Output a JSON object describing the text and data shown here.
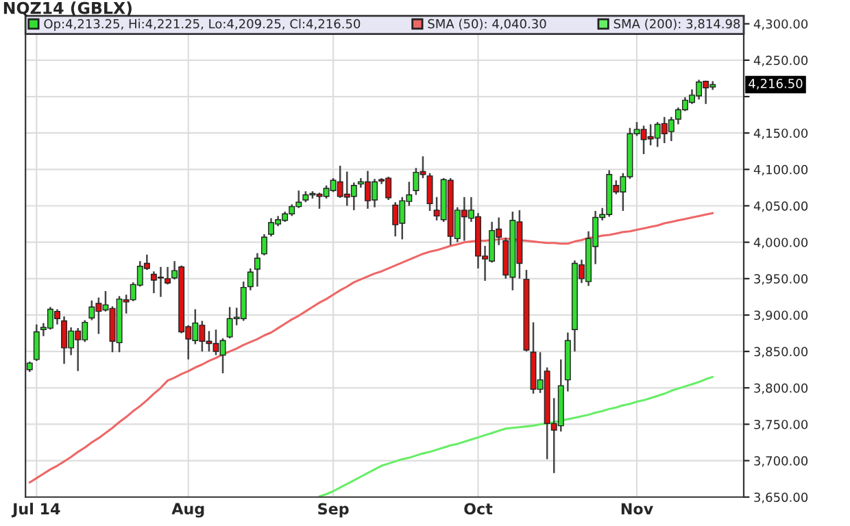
{
  "chart_data": {
    "type": "candlestick",
    "title": "NQZ14 (GBLX)",
    "categories": [
      null,
      "Jul 14",
      null,
      null,
      null,
      null,
      null,
      null,
      null,
      null,
      null,
      null,
      null,
      null,
      null,
      null,
      null,
      null,
      null,
      null,
      null,
      null,
      null,
      "Aug",
      null,
      null,
      null,
      null,
      null,
      null,
      null,
      null,
      null,
      null,
      null,
      null,
      null,
      null,
      null,
      null,
      null,
      null,
      null,
      null,
      "Sep",
      null,
      null,
      null,
      null,
      null,
      null,
      null,
      null,
      null,
      null,
      null,
      null,
      null,
      null,
      null,
      null,
      null,
      null,
      null,
      null,
      "Oct",
      null,
      null,
      null,
      null,
      null,
      null,
      null,
      null,
      null,
      null,
      null,
      null,
      null,
      null,
      null,
      null,
      null,
      null,
      null,
      null,
      null,
      null,
      "Nov",
      null,
      null,
      null,
      null,
      null,
      null,
      null,
      null,
      null,
      null,
      null
    ],
    "series": [
      {
        "name": "Op:4,213.25, Hi:4,221.25, Lo:4,209.25, Cl:4,216.50",
        "colors": [
          "#33dd33",
          "#33dd33",
          "#33dd33",
          "#33dd33",
          "#dd1111",
          "#dd1111",
          "#33dd33",
          "#dd1111",
          "#33dd33",
          "#33dd33",
          "#dd1111",
          "#33dd33",
          "#dd1111",
          "#33dd33",
          "#dd1111",
          "#33dd33",
          "#33dd33",
          "#dd1111",
          "#dd1111",
          "#dd1111",
          "#dd1111",
          "#33dd33",
          "#dd1111",
          "#dd1111",
          "#33dd33",
          "#dd1111",
          "#dd1111",
          "#dd1111",
          "#33dd33",
          "#33dd33",
          "#33dd33",
          "#33dd33",
          "#33dd33",
          "#33dd33",
          "#33dd33",
          "#33dd33",
          "#33dd33",
          "#33dd33",
          "#33dd33",
          "#33dd33",
          "#33dd33",
          "#33dd33",
          "#dd1111",
          "#33dd33",
          "#33dd33",
          "#dd1111",
          "#dd1111",
          "#33dd33",
          "#33dd33",
          "#dd1111",
          "#33dd33",
          "#dd1111",
          "#dd1111",
          "#dd1111",
          "#33dd33",
          "#33dd33",
          "#33dd33",
          "#dd1111",
          "#dd1111",
          "#dd1111",
          "#33dd33",
          "#dd1111",
          "#33dd33",
          "#dd1111",
          "#33dd33",
          "#dd1111",
          "#dd1111",
          "#33dd33",
          "#dd1111",
          "#dd1111",
          "#33dd33",
          "#dd1111",
          "#dd1111",
          "#dd1111",
          "#33dd33",
          "#dd1111",
          "#dd1111",
          "#33dd33",
          "#33dd33",
          "#33dd33",
          "#dd1111",
          "#33dd33",
          "#33dd33",
          "#33dd33",
          "#33dd33",
          "#dd1111",
          "#33dd33",
          "#33dd33",
          "#33dd33",
          "#dd1111",
          "#dd1111",
          "#33dd33",
          "#dd1111",
          "#33dd33",
          "#33dd33",
          "#33dd33",
          "#33dd33",
          "#33dd33",
          "#dd1111",
          "#33dd33"
        ],
        "ohlc": [
          [
            3825,
            3836,
            3822,
            3834
          ],
          [
            3839,
            3887,
            3837,
            3877
          ],
          [
            3880,
            3889,
            3871,
            3883
          ],
          [
            3882,
            3911,
            3880,
            3908
          ],
          [
            3905,
            3908,
            3887,
            3895
          ],
          [
            3892,
            3898,
            3833,
            3855
          ],
          [
            3855,
            3883,
            3845,
            3878
          ],
          [
            3878,
            3882,
            3823,
            3866
          ],
          [
            3866,
            3893,
            3863,
            3890
          ],
          [
            3896,
            3920,
            3893,
            3911
          ],
          [
            3916,
            3924,
            3874,
            3905
          ],
          [
            3907,
            3933,
            3905,
            3914
          ],
          [
            3909,
            3912,
            3849,
            3864
          ],
          [
            3862,
            3926,
            3849,
            3922
          ],
          [
            3921,
            3928,
            3902,
            3918
          ],
          [
            3921,
            3945,
            3919,
            3942
          ],
          [
            3941,
            3974,
            3939,
            3967
          ],
          [
            3971,
            3983,
            3962,
            3964
          ],
          [
            3956,
            3960,
            3930,
            3948
          ],
          [
            3952,
            3966,
            3925,
            3951
          ],
          [
            3950,
            3966,
            3942,
            3944
          ],
          [
            3951,
            3974,
            3949,
            3961
          ],
          [
            3966,
            3968,
            3875,
            3877
          ],
          [
            3884,
            3886,
            3839,
            3867
          ],
          [
            3865,
            3908,
            3860,
            3889
          ],
          [
            3886,
            3892,
            3850,
            3864
          ],
          [
            3864,
            3878,
            3850,
            3861
          ],
          [
            3861,
            3880,
            3845,
            3850
          ],
          [
            3845,
            3868,
            3820,
            3865
          ],
          [
            3870,
            3911,
            3868,
            3895
          ],
          [
            3895,
            3910,
            3886,
            3897
          ],
          [
            3895,
            3946,
            3892,
            3938
          ],
          [
            3939,
            3964,
            3934,
            3959
          ],
          [
            3963,
            3985,
            3939,
            3978
          ],
          [
            3984,
            4011,
            3982,
            4007
          ],
          [
            4011,
            4033,
            4008,
            4027
          ],
          [
            4025,
            4036,
            4022,
            4031
          ],
          [
            4030,
            4042,
            4028,
            4039
          ],
          [
            4039,
            4052,
            4036,
            4049
          ],
          [
            4049,
            4071,
            4047,
            4055
          ],
          [
            4058,
            4070,
            4055,
            4065
          ],
          [
            4065,
            4070,
            4060,
            4067
          ],
          [
            4066,
            4068,
            4046,
            4063
          ],
          [
            4063,
            4078,
            4060,
            4074
          ],
          [
            4071,
            4088,
            4069,
            4085
          ],
          [
            4083,
            4105,
            4061,
            4063
          ],
          [
            4066,
            4097,
            4050,
            4062
          ],
          [
            4063,
            4082,
            4044,
            4078
          ],
          [
            4080,
            4088,
            4075,
            4083
          ],
          [
            4083,
            4098,
            4046,
            4057
          ],
          [
            4058,
            4087,
            4048,
            4083
          ],
          [
            4086,
            4088,
            4080,
            4084
          ],
          [
            4088,
            4090,
            4058,
            4061
          ],
          [
            4051,
            4055,
            4008,
            4024
          ],
          [
            4026,
            4062,
            4004,
            4057
          ],
          [
            4056,
            4083,
            4050,
            4065
          ],
          [
            4071,
            4102,
            4065,
            4096
          ],
          [
            4097,
            4118,
            4088,
            4093
          ],
          [
            4091,
            4095,
            4043,
            4053
          ],
          [
            4044,
            4062,
            4030,
            4036
          ],
          [
            4031,
            4088,
            4028,
            4086
          ],
          [
            4085,
            4088,
            3996,
            4008
          ],
          [
            4005,
            4048,
            4000,
            4044
          ],
          [
            4044,
            4062,
            4002,
            4035
          ],
          [
            4033,
            4062,
            4028,
            4044
          ],
          [
            4035,
            4040,
            3964,
            3981
          ],
          [
            3981,
            3995,
            3947,
            3977
          ],
          [
            3974,
            4028,
            3972,
            4016
          ],
          [
            4018,
            4034,
            3996,
            4007
          ],
          [
            4002,
            4006,
            3950,
            3955
          ],
          [
            3952,
            4042,
            3934,
            4030
          ],
          [
            4028,
            4044,
            3950,
            3971
          ],
          [
            3949,
            3962,
            3850,
            3852
          ],
          [
            3849,
            3890,
            3792,
            3798
          ],
          [
            3798,
            3849,
            3793,
            3811
          ],
          [
            3823,
            3828,
            3702,
            3751
          ],
          [
            3751,
            3786,
            3683,
            3742
          ],
          [
            3748,
            3839,
            3740,
            3803
          ],
          [
            3811,
            3876,
            3795,
            3865
          ],
          [
            3880,
            3975,
            3850,
            3971
          ],
          [
            3969,
            3976,
            3944,
            3950
          ],
          [
            3946,
            4015,
            3940,
            4005
          ],
          [
            3994,
            4043,
            3970,
            4034
          ],
          [
            4034,
            4047,
            4030,
            4038
          ],
          [
            4038,
            4099,
            4035,
            4093
          ],
          [
            4078,
            4085,
            4066,
            4069
          ],
          [
            4069,
            4095,
            4043,
            4090
          ],
          [
            4090,
            4157,
            4087,
            4149
          ],
          [
            4149,
            4165,
            4146,
            4155
          ],
          [
            4155,
            4160,
            4121,
            4141
          ],
          [
            4145,
            4162,
            4133,
            4142
          ],
          [
            4143,
            4165,
            4131,
            4162
          ],
          [
            4163,
            4172,
            4136,
            4149
          ],
          [
            4152,
            4172,
            4139,
            4168
          ],
          [
            4169,
            4185,
            4162,
            4182
          ],
          [
            4182,
            4199,
            4180,
            4195
          ],
          [
            4192,
            4210,
            4190,
            4202
          ],
          [
            4201,
            4223,
            4196,
            4220
          ],
          [
            4221,
            4222,
            4190,
            4212
          ],
          [
            4213.25,
            4221.25,
            4209.25,
            4216.5
          ]
        ]
      },
      {
        "type": "line",
        "name": "SMA (50): 4,040.30",
        "color": "#ee6666",
        "values": [
          3670,
          3676,
          3682,
          3688,
          3693,
          3699,
          3705,
          3712,
          3718,
          3725,
          3731,
          3738,
          3745,
          3753,
          3760,
          3768,
          3775,
          3783,
          3792,
          3800,
          3810,
          3814,
          3819,
          3823,
          3828,
          3832,
          3837,
          3841,
          3846,
          3850,
          3854,
          3859,
          3863,
          3867,
          3872,
          3876,
          3882,
          3888,
          3894,
          3899,
          3905,
          3911,
          3917,
          3922,
          3928,
          3934,
          3939,
          3945,
          3949,
          3953,
          3957,
          3960,
          3964,
          3968,
          3972,
          3976,
          3980,
          3984,
          3987,
          3989,
          3992,
          3995,
          3997,
          4000,
          4001,
          4002,
          4002,
          4003,
          4004,
          4005,
          4004,
          4003,
          4002,
          4001,
          4000,
          3999,
          3999,
          3998,
          3998,
          4001,
          4003,
          4006,
          4007,
          4009,
          4010,
          4012,
          4014,
          4015,
          4017,
          4019,
          4021,
          4023,
          4026,
          4028,
          4030,
          4032,
          4034,
          4036,
          4038,
          4040
        ]
      },
      {
        "type": "line",
        "name": "SMA (200): 3,814.98",
        "color": "#66ee66",
        "values": [
          null,
          null,
          null,
          null,
          null,
          null,
          null,
          null,
          null,
          null,
          null,
          null,
          null,
          null,
          null,
          null,
          null,
          null,
          null,
          null,
          null,
          null,
          null,
          null,
          null,
          null,
          null,
          null,
          null,
          null,
          null,
          null,
          null,
          null,
          null,
          null,
          null,
          null,
          null,
          null,
          null,
          null,
          3651,
          3654,
          3658,
          3663,
          3668,
          3673,
          3678,
          3683,
          3688,
          3693,
          3696,
          3699,
          3702,
          3704,
          3707,
          3710,
          3712,
          3715,
          3718,
          3721,
          3723,
          3726,
          3729,
          3732,
          3735,
          3738,
          3741,
          3744,
          3745,
          3746,
          3747,
          3748,
          3750,
          3751,
          3753,
          3755,
          3757,
          3759,
          3761,
          3763,
          3766,
          3768,
          3771,
          3773,
          3776,
          3778,
          3781,
          3783,
          3786,
          3789,
          3792,
          3796,
          3799,
          3802,
          3805,
          3808,
          3812,
          3815
        ]
      }
    ],
    "ylim": [
      3650,
      4311
    ],
    "yticks": [
      {
        "value": 3650,
        "label": "3,650.00"
      },
      {
        "value": 3700,
        "label": "3,700.00"
      },
      {
        "value": 3750,
        "label": "3,750.00"
      },
      {
        "value": 3800,
        "label": "3,800.00"
      },
      {
        "value": 3850,
        "label": "3,850.00"
      },
      {
        "value": 3900,
        "label": "3,900.00"
      },
      {
        "value": 3950,
        "label": "3,950.00"
      },
      {
        "value": 4000,
        "label": "4,000.00"
      },
      {
        "value": 4050,
        "label": "4,050.00"
      },
      {
        "value": 4100,
        "label": "4,100.00"
      },
      {
        "value": 4150,
        "label": "4,150.00"
      },
      {
        "value": 4200,
        "label": null
      },
      {
        "value": 4250,
        "label": "4,250.00"
      },
      {
        "value": 4300,
        "label": "4,300.00"
      }
    ],
    "annotations": [
      "4,216.50"
    ],
    "grid": true,
    "legend": "top"
  }
}
